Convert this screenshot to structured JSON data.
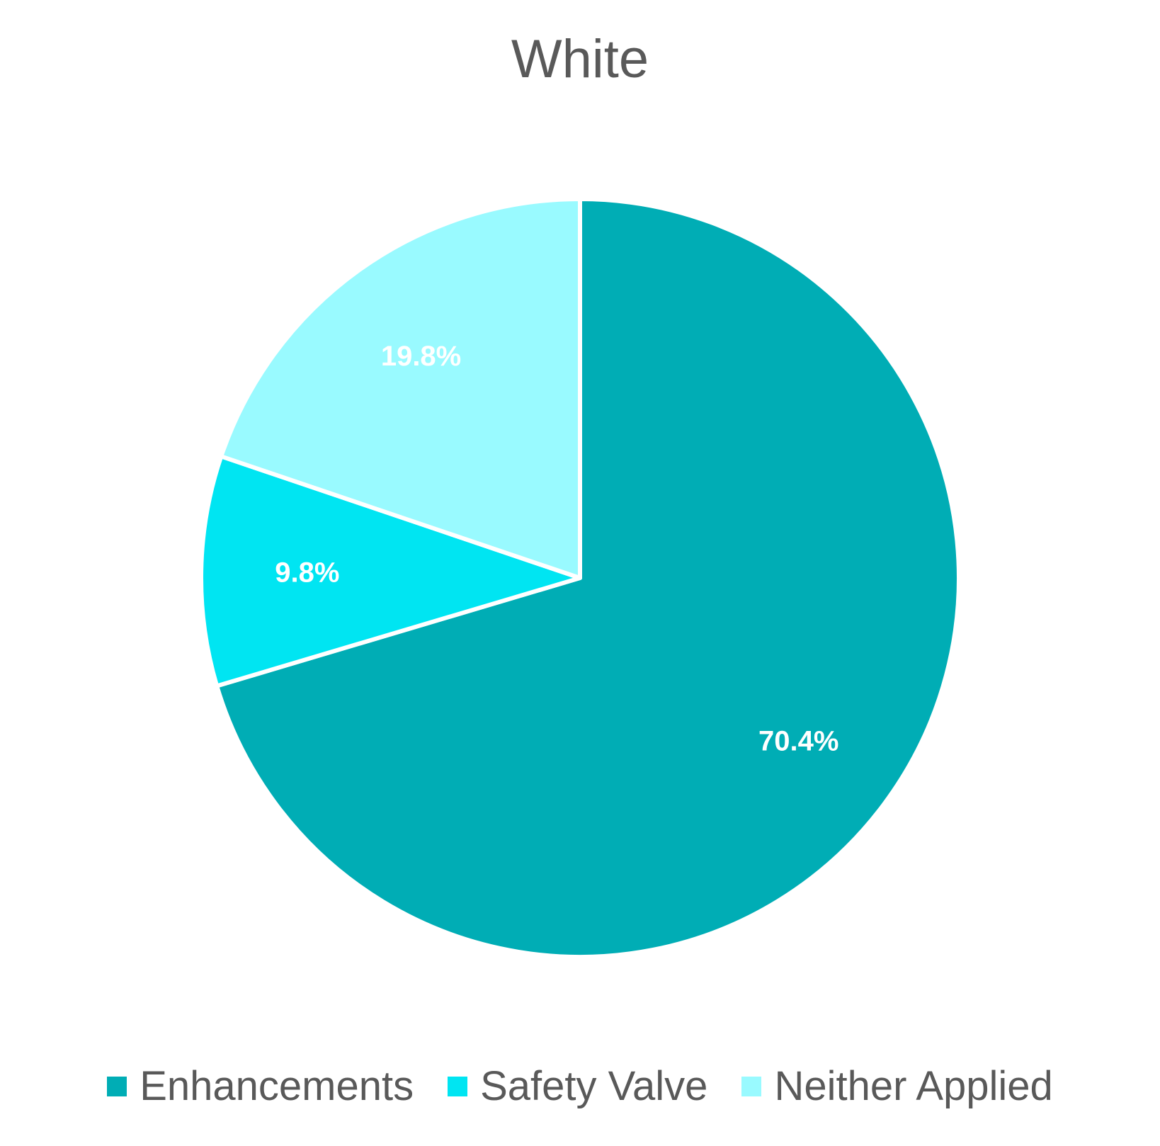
{
  "chart_data": {
    "type": "pie",
    "title": "White",
    "categories": [
      "Enhancements",
      "Safety Valve",
      "Neither Applied"
    ],
    "values": [
      70.4,
      9.8,
      19.8
    ],
    "data_labels": [
      "70.4%",
      "9.8%",
      "19.8%"
    ],
    "colors": [
      "#00ADB5",
      "#00E5F2",
      "#99FAFF"
    ],
    "legend_position": "bottom",
    "start_angle": "top, clockwise"
  }
}
